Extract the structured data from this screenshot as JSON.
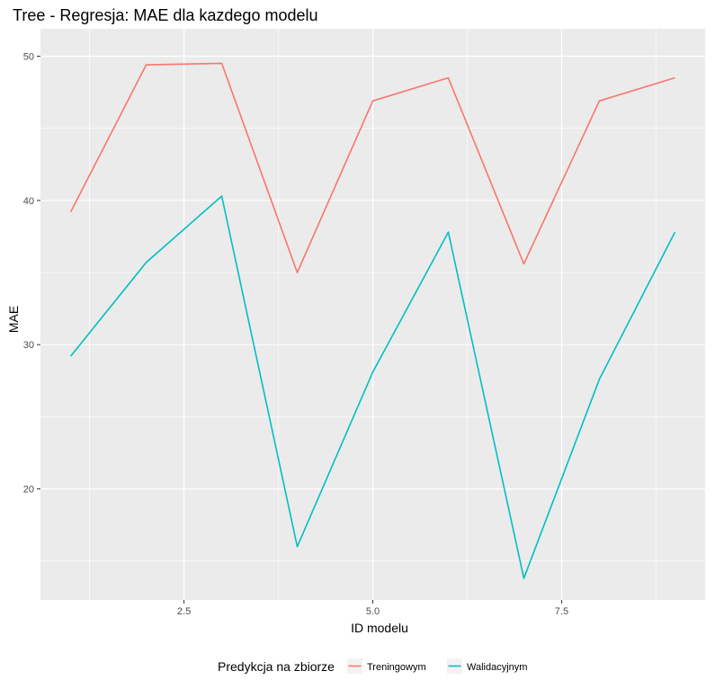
{
  "chart_data": {
    "type": "line",
    "title": "Tree - Regresja: MAE dla kazdego modelu",
    "xlabel": "ID modelu",
    "ylabel": "MAE",
    "x": [
      1,
      2,
      3,
      4,
      5,
      6,
      7,
      8,
      9
    ],
    "xlim": [
      0.6,
      9.4
    ],
    "ylim": [
      12.3,
      51.9
    ],
    "x_ticks": [
      2.5,
      5.0,
      7.5
    ],
    "x_tick_labels": [
      "2.5",
      "5.0",
      "7.5"
    ],
    "y_ticks": [
      20,
      30,
      40,
      50
    ],
    "y_tick_labels": [
      "20",
      "30",
      "40",
      "50"
    ],
    "grid": true,
    "legend": {
      "title": "Predykcja na zbiorze",
      "position": "bottom"
    },
    "series": [
      {
        "name": "Treningowym",
        "color": "#F8766D",
        "values": [
          39.2,
          49.4,
          49.5,
          35.0,
          46.9,
          48.5,
          35.6,
          46.9,
          48.5
        ]
      },
      {
        "name": "Walidacyjnym",
        "color": "#00BFC4",
        "values": [
          29.2,
          35.7,
          40.3,
          16.0,
          28.1,
          37.8,
          13.8,
          27.6,
          37.8
        ]
      }
    ]
  }
}
